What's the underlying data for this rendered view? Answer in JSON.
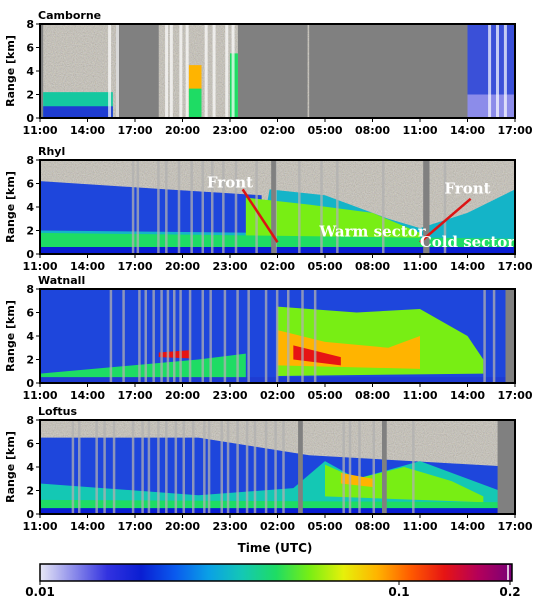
{
  "chart_data": [
    {
      "type": "heatmap",
      "title": "Camborne",
      "ylabel": "Range [km]",
      "ylim": [
        0,
        8
      ],
      "yticks": [
        "0",
        "2",
        "4",
        "6",
        "8"
      ],
      "xticks": [
        "11:00",
        "14:00",
        "17:00",
        "20:00",
        "23:00",
        "02:00",
        "05:00",
        "08:00",
        "11:00",
        "14:00",
        "17:00"
      ],
      "missing_data_periods_hours": [
        [
          4.8,
          7.5
        ],
        [
          12.5,
          16.9
        ],
        [
          17.0,
          27.0
        ]
      ],
      "noise_spikes_hours": [
        4.3,
        4.8,
        7.9,
        8.2,
        8.8,
        9.2,
        10.4,
        10.9,
        11.7,
        12.1,
        28.3,
        28.8,
        29.3
      ]
    },
    {
      "type": "heatmap",
      "title": "Rhyl",
      "ylabel": "Range [km]",
      "ylim": [
        0,
        8
      ],
      "yticks": [
        "0",
        "2",
        "4",
        "6",
        "8"
      ],
      "xticks": [
        "11:00",
        "14:00",
        "17:00",
        "20:00",
        "23:00",
        "02:00",
        "05:00",
        "08:00",
        "11:00",
        "14:00",
        "17:00"
      ],
      "annotations": [
        "Front",
        "Warm sector",
        "Front",
        "Cold sector"
      ]
    },
    {
      "type": "heatmap",
      "title": "Watnall",
      "ylabel": "Range [km]",
      "ylim": [
        0,
        8
      ],
      "yticks": [
        "0",
        "2",
        "4",
        "6",
        "8"
      ],
      "xticks": [
        "11:00",
        "14:00",
        "17:00",
        "20:00",
        "23:00",
        "02:00",
        "05:00",
        "08:00",
        "11:00",
        "14:00",
        "17:00"
      ]
    },
    {
      "type": "heatmap",
      "title": "Loftus",
      "ylabel": "Range [km]",
      "xlabel": "Time (UTC)",
      "ylim": [
        0,
        8
      ],
      "yticks": [
        "0",
        "2",
        "4",
        "6",
        "8"
      ],
      "xticks": [
        "11:00",
        "14:00",
        "17:00",
        "20:00",
        "23:00",
        "02:00",
        "05:00",
        "08:00",
        "11:00",
        "14:00",
        "17:00"
      ]
    }
  ],
  "colorbar": {
    "min_label": "0.01",
    "mid_label": "0.1",
    "max_label": "0.2",
    "colors": [
      "#e8e8f6",
      "#8c8cea",
      "#3232e0",
      "#0a1ed2",
      "#0a5aee",
      "#0aa0e6",
      "#14c8b4",
      "#1edc64",
      "#78ee14",
      "#e6f00a",
      "#ffb400",
      "#ff5a00",
      "#e61414",
      "#b4005a",
      "#780078"
    ]
  },
  "colors": {
    "missing": "#808080",
    "noise": "#a09e94",
    "background_blue": "#1e3cd2",
    "front_line": "#dc1414"
  }
}
